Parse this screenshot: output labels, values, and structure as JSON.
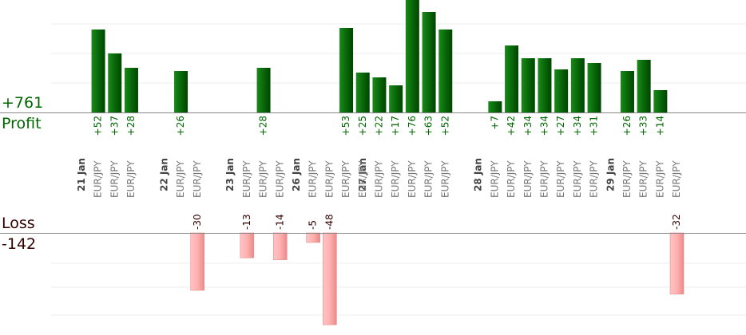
{
  "summary": {
    "profit_total": "+761",
    "profit_label": "Profit",
    "loss_label": "Loss",
    "loss_total": "-142"
  },
  "colors": {
    "profit_bar": "#0a6b0a",
    "profit_bar_light": "#1a8a1a",
    "profit_bar_dark": "#004400",
    "profit_text": "#006600",
    "loss_bar": "#ffb0b0",
    "loss_bar_dark": "#e88a8a",
    "loss_text": "#330000",
    "label_text": "#777777",
    "date_text": "#444444",
    "grid": "#eeeeee",
    "axis": "#888888"
  },
  "chart_data": {
    "type": "bar",
    "title": "",
    "dates": [
      {
        "label": "21 Jan",
        "slot": 0
      },
      {
        "label": "22 Jan",
        "slot": 5
      },
      {
        "label": "23 Jan",
        "slot": 9
      },
      {
        "label": "26 Jan",
        "slot": 13
      },
      {
        "label": "27 Jan",
        "slot": 17
      },
      {
        "label": "28 Jan",
        "slot": 24
      },
      {
        "label": "29 Jan",
        "slot": 32
      }
    ],
    "trades": [
      {
        "slot": 1,
        "pair": "EUR/JPY",
        "value": 52
      },
      {
        "slot": 2,
        "pair": "EUR/JPY",
        "value": 37
      },
      {
        "slot": 3,
        "pair": "EUR/JPY",
        "value": 28
      },
      {
        "slot": 6,
        "pair": "EUR/JPY",
        "value": 26
      },
      {
        "slot": 7,
        "pair": "EUR/JPY",
        "value": -30
      },
      {
        "slot": 10,
        "pair": "EUR/JPY",
        "value": -13
      },
      {
        "slot": 11,
        "pair": "EUR/JPY",
        "value": 28
      },
      {
        "slot": 12,
        "pair": "EUR/JPY",
        "value": -14
      },
      {
        "slot": 14,
        "pair": "EUR/JPY",
        "value": -5
      },
      {
        "slot": 15,
        "pair": "EUR/JPY",
        "value": -48
      },
      {
        "slot": 16,
        "pair": "EUR/JPY",
        "value": 53
      },
      {
        "slot": 17,
        "pair": "EUR/JPY",
        "value": 25
      },
      {
        "slot": 18,
        "pair": "EUR/JPY",
        "value": 22
      },
      {
        "slot": 19,
        "pair": "EUR/JPY",
        "value": 17
      },
      {
        "slot": 20,
        "pair": "EUR/JPY",
        "value": 76
      },
      {
        "slot": 21,
        "pair": "EUR/JPY",
        "value": 63
      },
      {
        "slot": 22,
        "pair": "EUR/JPY",
        "value": 52
      },
      {
        "slot": 25,
        "pair": "EUR/JPY",
        "value": 7
      },
      {
        "slot": 26,
        "pair": "EUR/JPY",
        "value": 42
      },
      {
        "slot": 27,
        "pair": "EUR/JPY",
        "value": 34
      },
      {
        "slot": 28,
        "pair": "EUR/JPY",
        "value": 34
      },
      {
        "slot": 29,
        "pair": "EUR/JPY",
        "value": 27
      },
      {
        "slot": 30,
        "pair": "EUR/JPY",
        "value": 34
      },
      {
        "slot": 31,
        "pair": "EUR/JPY",
        "value": 31
      },
      {
        "slot": 33,
        "pair": "EUR/JPY",
        "value": 26
      },
      {
        "slot": 34,
        "pair": "EUR/JPY",
        "value": 33
      },
      {
        "slot": 35,
        "pair": "EUR/JPY",
        "value": 14
      },
      {
        "slot": 36,
        "pair": "EUR/JPY",
        "value": -32
      }
    ],
    "grid": true,
    "legend": "none"
  }
}
